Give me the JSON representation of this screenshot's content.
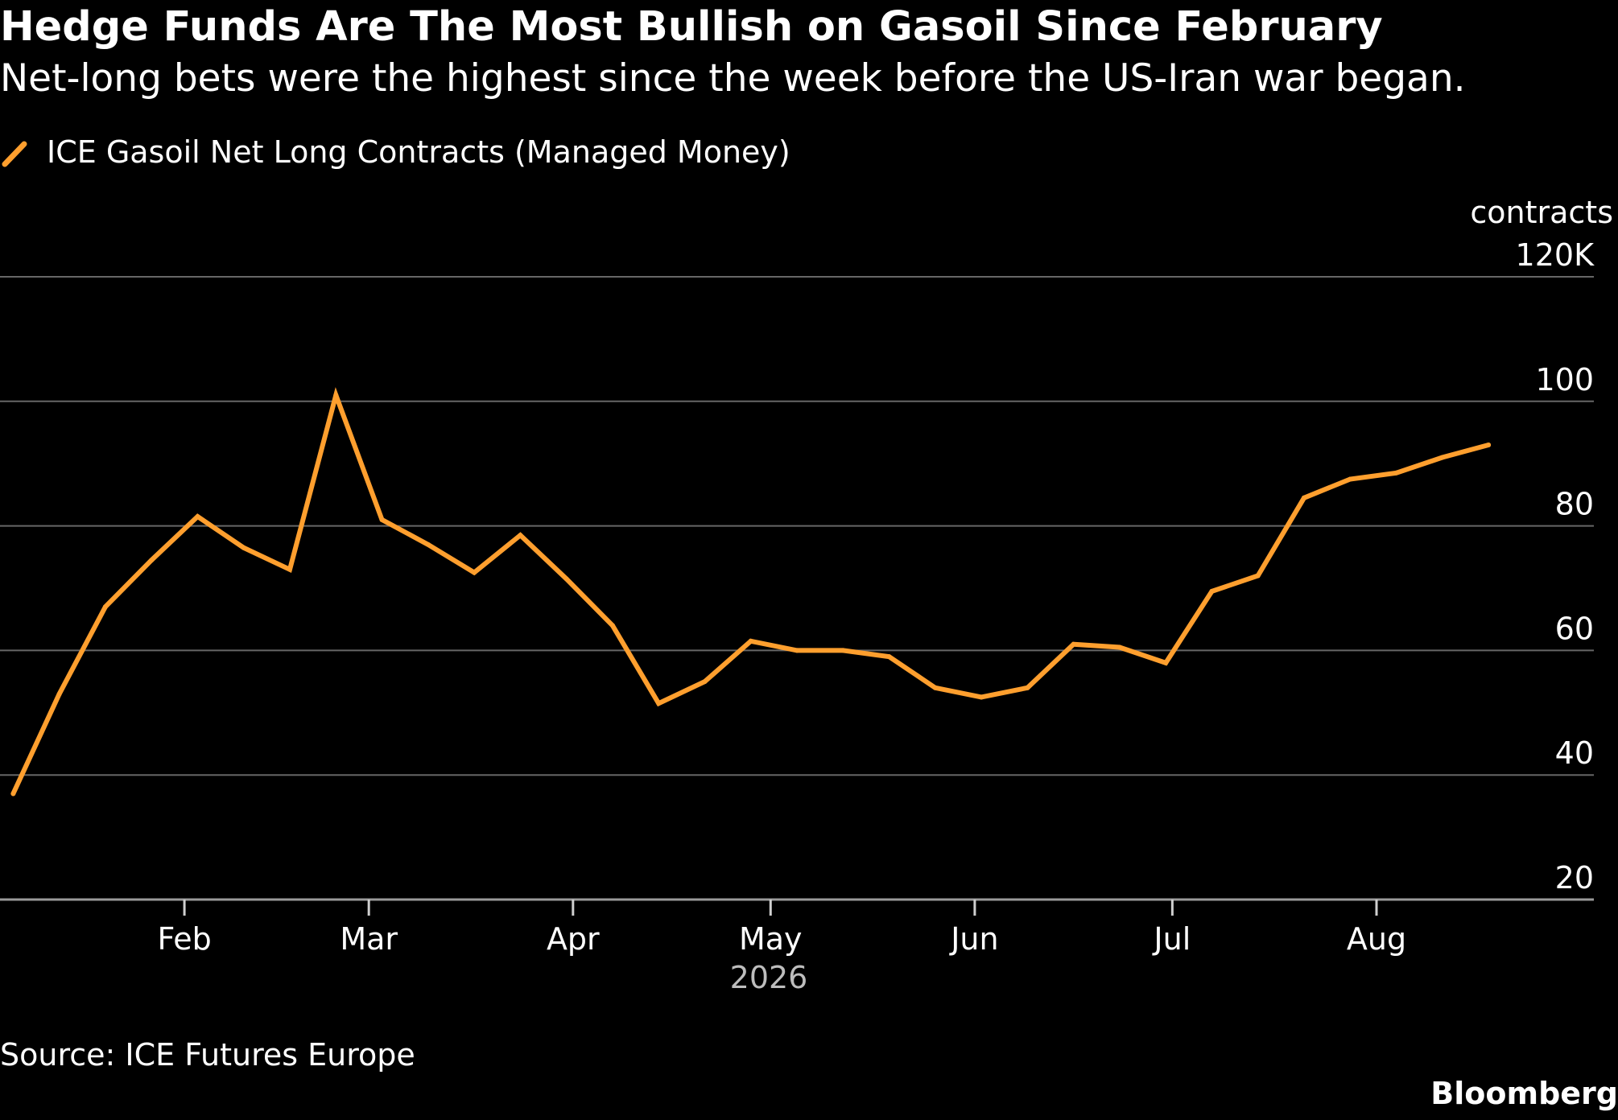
{
  "header": {
    "title": "Hedge Funds Are The Most Bullish on Gasoil Since February",
    "subtitle": "Net-long bets were the highest since the week before the US-Iran war began."
  },
  "footer": {
    "source": "Source: ICE Futures Europe",
    "brand": "Bloomberg"
  },
  "colors": {
    "background": "#000000",
    "series": "#ff9f2e",
    "gridline": "#666666",
    "axis_text": "#ffffff",
    "year_text": "#bdbdbd"
  },
  "chart_data": {
    "type": "line",
    "ylabel": "contracts",
    "ylim": [
      20,
      120
    ],
    "yticks": [
      {
        "value": 120,
        "label": "120K"
      },
      {
        "value": 100,
        "label": "100"
      },
      {
        "value": 80,
        "label": "80"
      },
      {
        "value": 60,
        "label": "60"
      },
      {
        "value": 40,
        "label": "40"
      },
      {
        "value": 20,
        "label": "20"
      }
    ],
    "xlim": [
      "2026-01-04",
      "2026-09-03"
    ],
    "xticks": [
      {
        "date": "2026-02-01",
        "label": "Feb"
      },
      {
        "date": "2026-03-01",
        "label": "Mar"
      },
      {
        "date": "2026-04-01",
        "label": "Apr"
      },
      {
        "date": "2026-05-01",
        "label": "May"
      },
      {
        "date": "2026-06-01",
        "label": "Jun"
      },
      {
        "date": "2026-07-01",
        "label": "Jul"
      },
      {
        "date": "2026-08-01",
        "label": "Aug"
      }
    ],
    "year_label": "2026",
    "grid": true,
    "legend_position": "top-left",
    "series": [
      {
        "name": "ICE Gasoil Net Long Contracts (Managed Money)",
        "color": "#ff9f2e",
        "points": [
          {
            "x": "2026-01-06",
            "y": 37.0
          },
          {
            "x": "2026-01-13",
            "y": 53.0
          },
          {
            "x": "2026-01-20",
            "y": 67.0
          },
          {
            "x": "2026-01-27",
            "y": 74.5
          },
          {
            "x": "2026-02-03",
            "y": 81.5
          },
          {
            "x": "2026-02-10",
            "y": 76.5
          },
          {
            "x": "2026-02-17",
            "y": 73.0
          },
          {
            "x": "2026-02-24",
            "y": 101.0
          },
          {
            "x": "2026-03-03",
            "y": 81.0
          },
          {
            "x": "2026-03-10",
            "y": 77.0
          },
          {
            "x": "2026-03-17",
            "y": 72.5
          },
          {
            "x": "2026-03-24",
            "y": 78.5
          },
          {
            "x": "2026-03-31",
            "y": 71.5
          },
          {
            "x": "2026-04-07",
            "y": 64.0
          },
          {
            "x": "2026-04-14",
            "y": 51.5
          },
          {
            "x": "2026-04-21",
            "y": 55.0
          },
          {
            "x": "2026-04-28",
            "y": 61.5
          },
          {
            "x": "2026-05-05",
            "y": 60.0
          },
          {
            "x": "2026-05-12",
            "y": 60.0
          },
          {
            "x": "2026-05-19",
            "y": 59.0
          },
          {
            "x": "2026-05-26",
            "y": 54.0
          },
          {
            "x": "2026-06-02",
            "y": 52.5
          },
          {
            "x": "2026-06-09",
            "y": 54.0
          },
          {
            "x": "2026-06-16",
            "y": 61.0
          },
          {
            "x": "2026-06-23",
            "y": 60.5
          },
          {
            "x": "2026-06-30",
            "y": 58.0
          },
          {
            "x": "2026-07-07",
            "y": 69.5
          },
          {
            "x": "2026-07-14",
            "y": 72.0
          },
          {
            "x": "2026-07-21",
            "y": 84.5
          },
          {
            "x": "2026-07-28",
            "y": 87.5
          },
          {
            "x": "2026-08-04",
            "y": 88.5
          },
          {
            "x": "2026-08-11",
            "y": 91.0
          },
          {
            "x": "2026-08-18",
            "y": 93.0
          }
        ]
      }
    ]
  }
}
